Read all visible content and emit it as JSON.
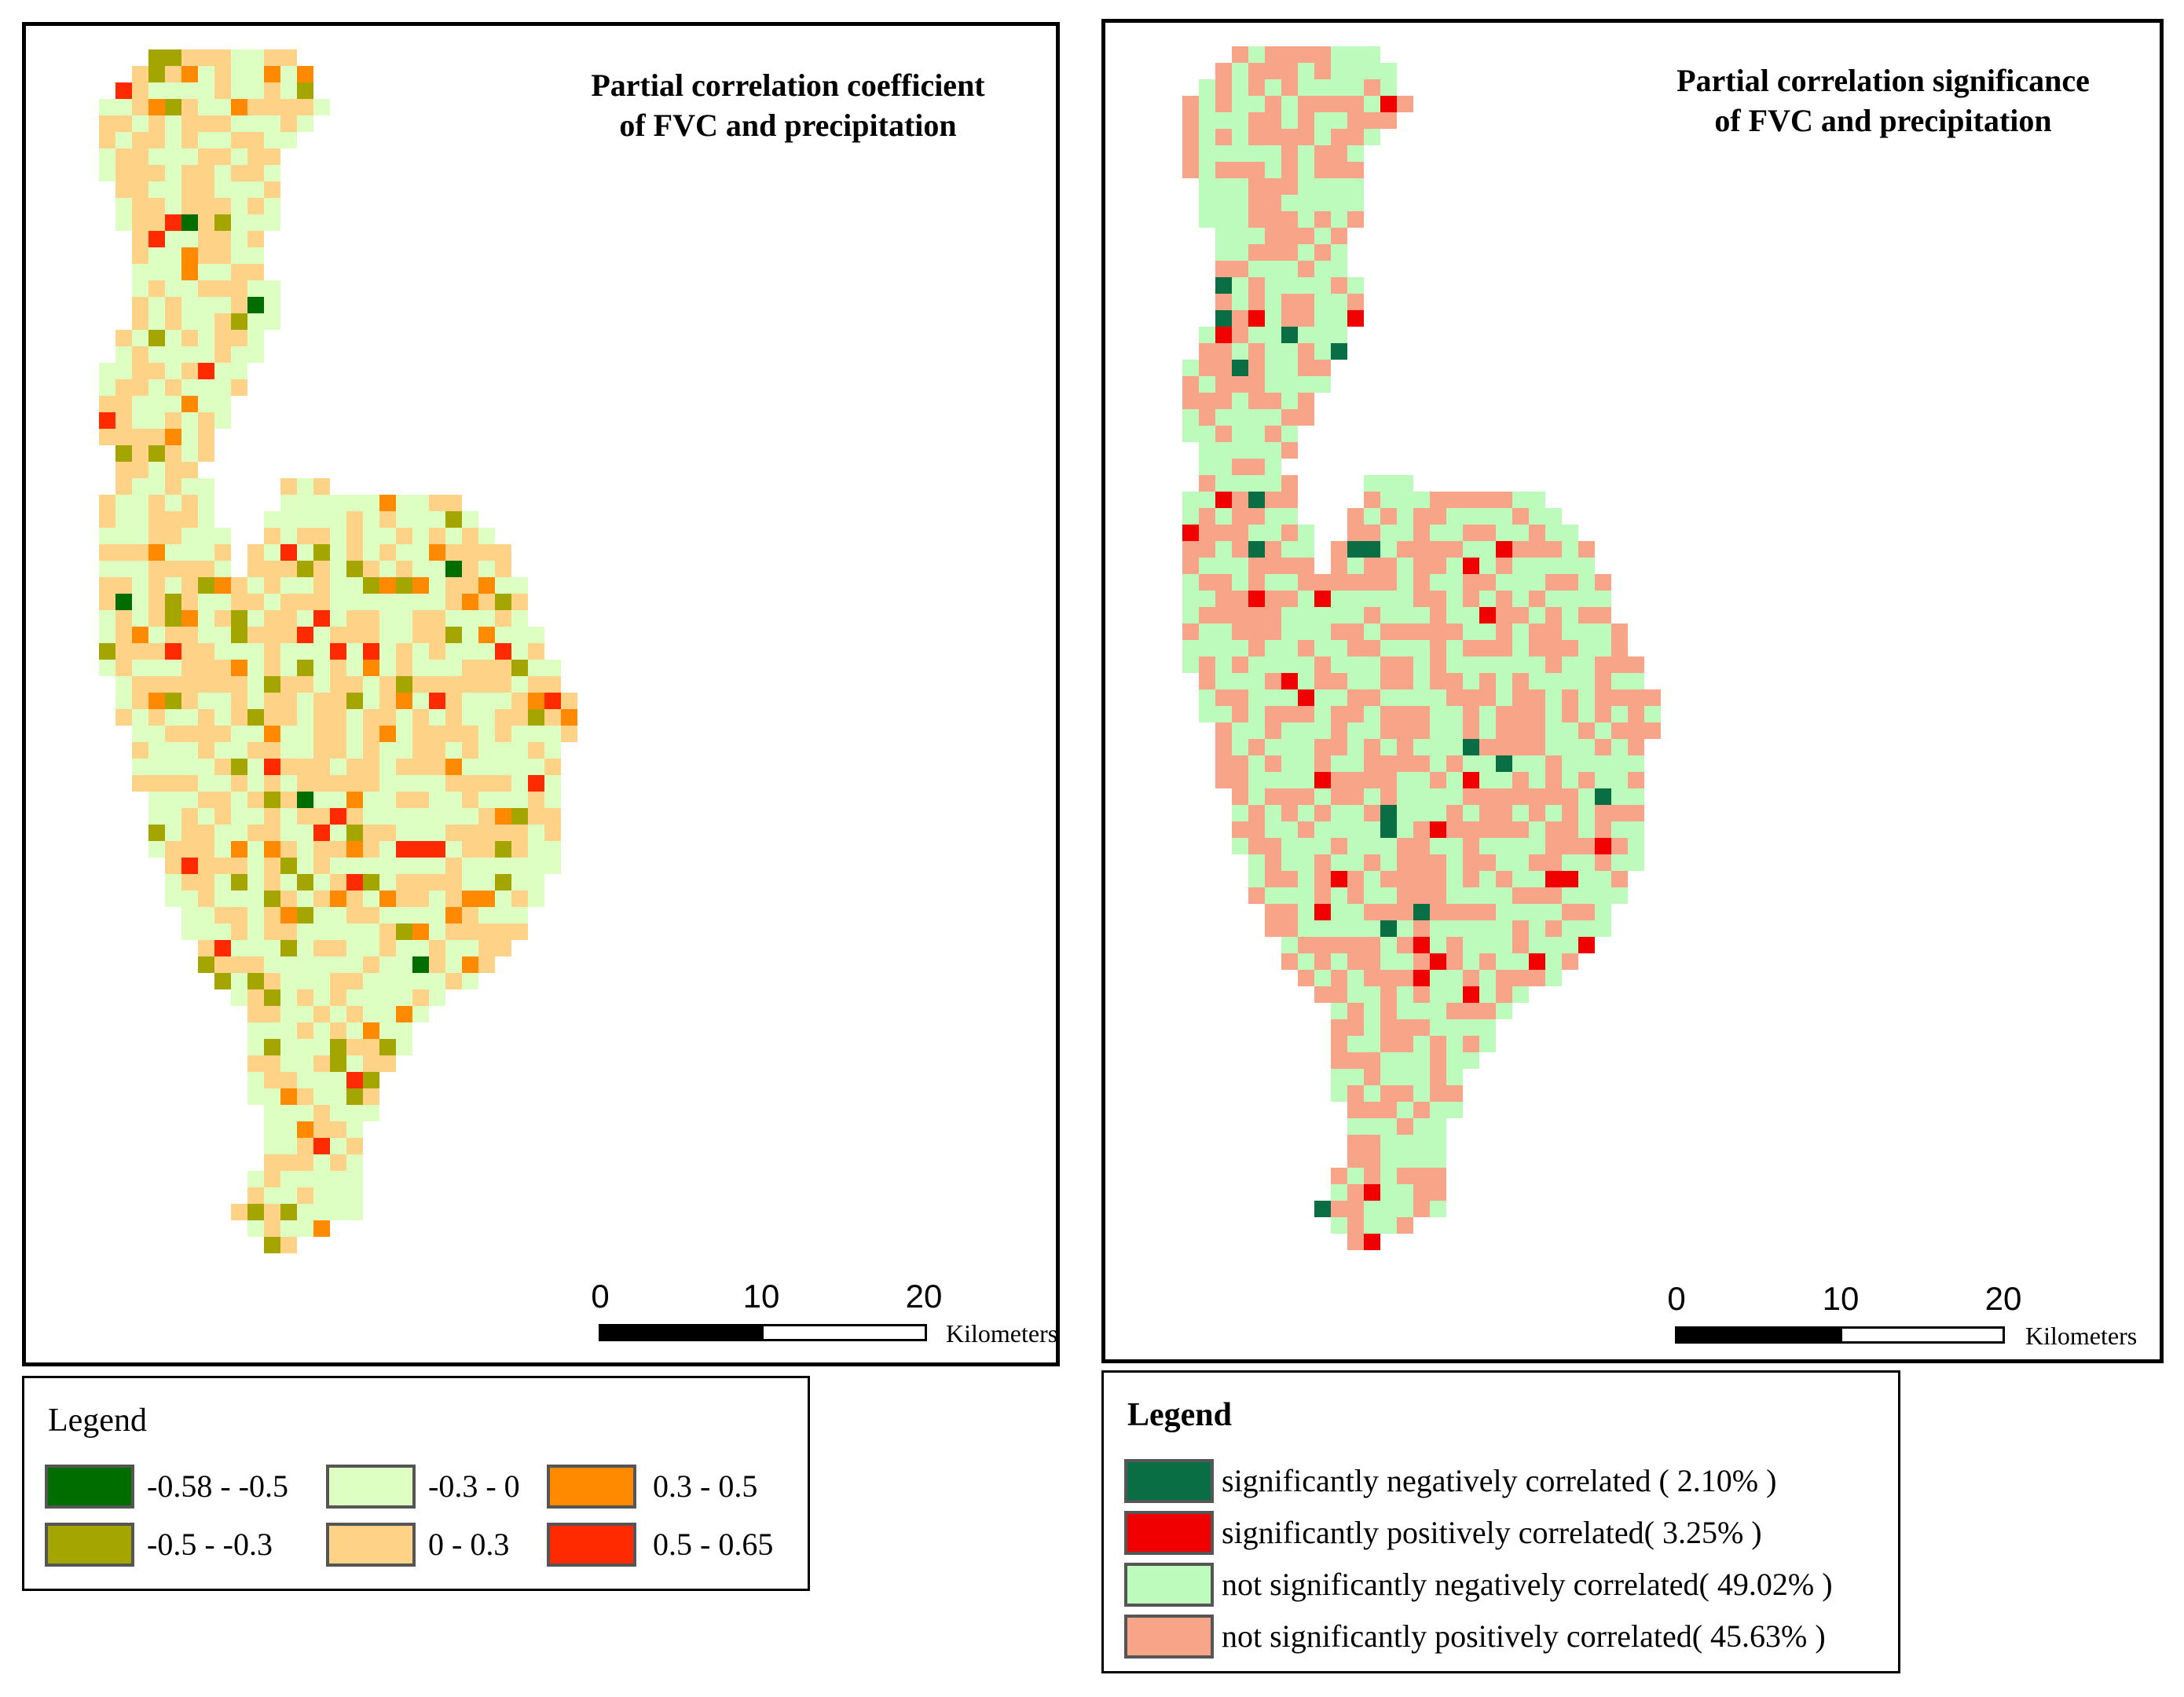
{
  "colors": {
    "coef": [
      "#006d00",
      "#a5a500",
      "#deffc2",
      "#ffd387",
      "#ff8a00",
      "#ff2a00"
    ],
    "sig": [
      "#0a6e45",
      "#f00000",
      "#bdfbbd",
      "#f8a488"
    ]
  },
  "left_map": {
    "title_line1": "Partial correlation coefficient",
    "title_line2": "of FVC and precipitation",
    "scale": {
      "tick0": "0",
      "tick1": "10",
      "tick2": "20",
      "unit": "Kilometers"
    }
  },
  "right_map": {
    "title_line1": "Partial correlation significance",
    "title_line2": "of FVC and precipitation",
    "scale": {
      "tick0": "0",
      "tick1": "10",
      "tick2": "20",
      "unit": "Kilometers"
    }
  },
  "left_legend": {
    "title": "Legend",
    "items": [
      {
        "label": "-0.58 - -0.5",
        "color": "#006d00"
      },
      {
        "label": "-0.3 - 0",
        "color": "#deffc2"
      },
      {
        "label": "0.3 - 0.5",
        "color": "#ff8a00"
      },
      {
        "label": "-0.5 - -0.3",
        "color": "#a5a500"
      },
      {
        "label": "0 - 0.3",
        "color": "#ffd387"
      },
      {
        "label": "0.5 - 0.65",
        "color": "#ff2a00"
      }
    ]
  },
  "right_legend": {
    "title": "Legend",
    "items": [
      {
        "label": "significantly negatively correlated ( 2.10% )",
        "color": "#0a6e45"
      },
      {
        "label": "significantly positively correlated( 3.25% )",
        "color": "#f00000"
      },
      {
        "label": "not significantly negatively correlated( 49.02% )",
        "color": "#bdfbbd"
      },
      {
        "label": "not significantly positively correlated( 45.63% )",
        "color": "#f8a488"
      }
    ]
  }
}
